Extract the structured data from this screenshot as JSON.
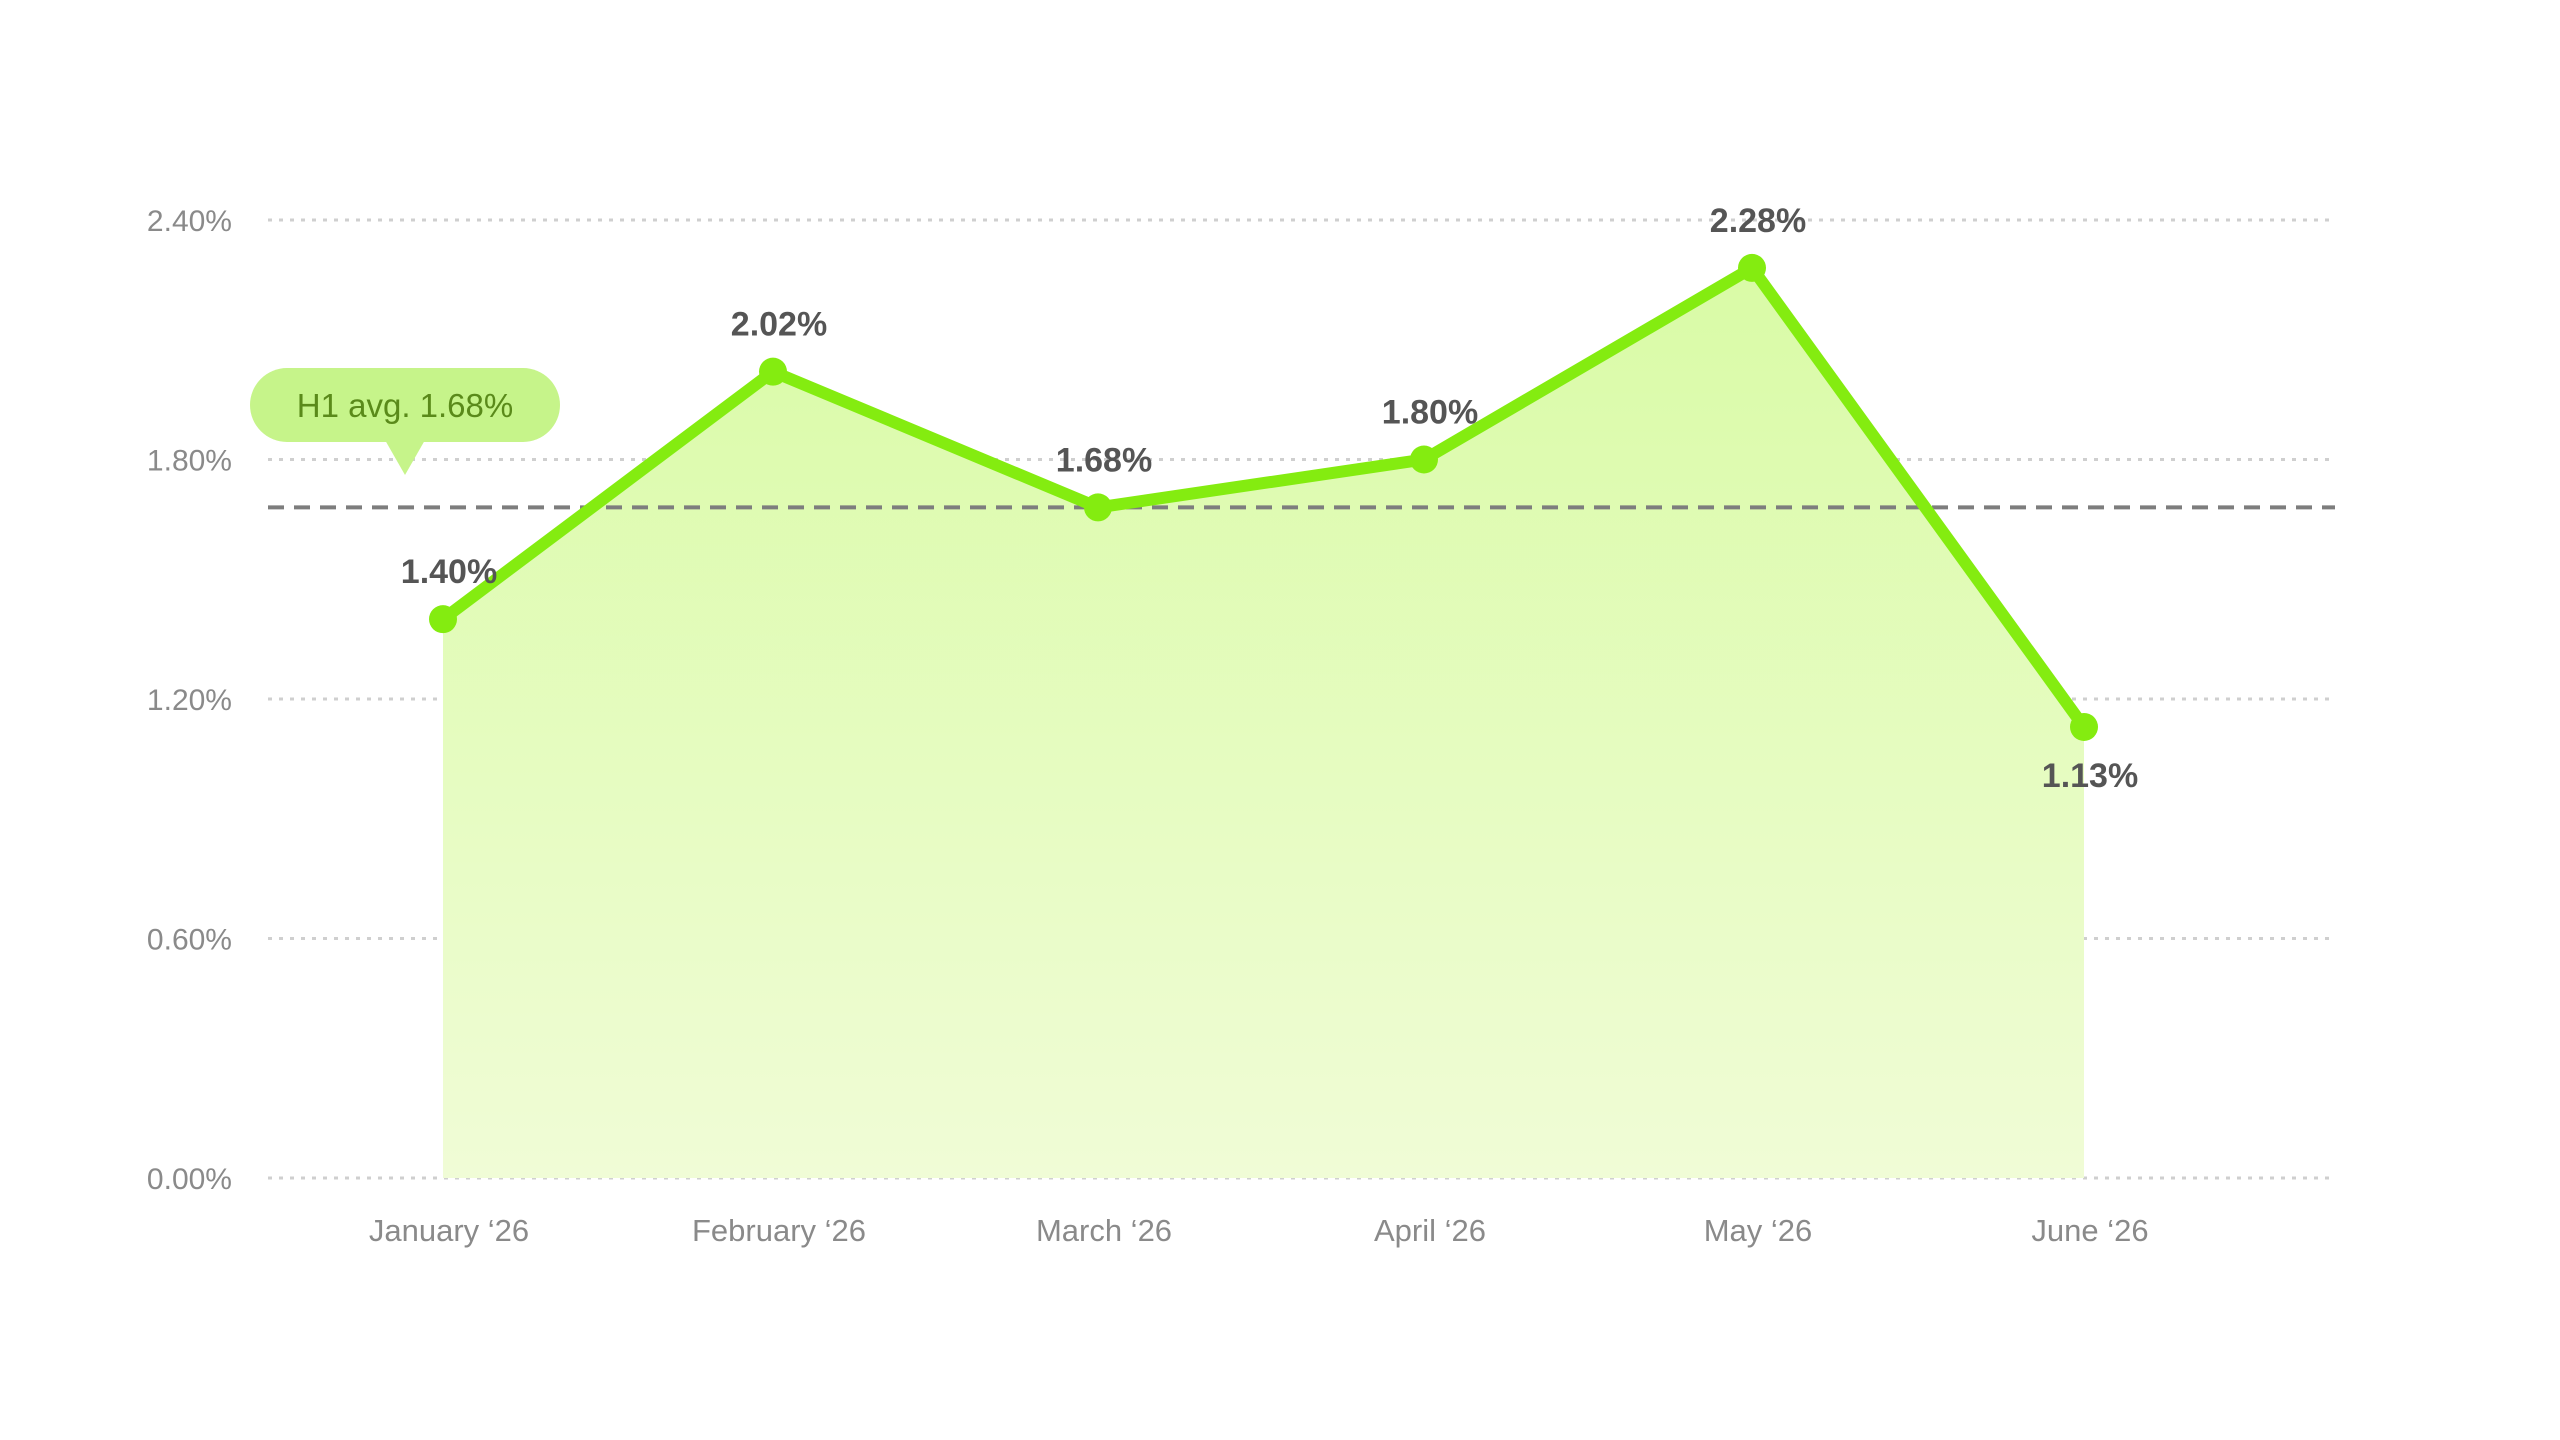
{
  "chart_data": {
    "type": "area",
    "categories": [
      "January ‘26",
      "February ‘26",
      "March ‘26",
      "April ‘26",
      "May ‘26",
      "June ‘26"
    ],
    "values": [
      1.4,
      2.02,
      1.68,
      1.8,
      2.28,
      1.13
    ],
    "data_labels": [
      "1.40%",
      "2.02%",
      "1.68%",
      "1.80%",
      "2.28%",
      "1.13%"
    ],
    "ylim": [
      0,
      2.4
    ],
    "y_ticks": [
      0,
      0.6,
      1.2,
      1.8,
      2.4
    ],
    "y_tick_labels": [
      "0.00%",
      "0.60%",
      "1.20%",
      "1.80%",
      "2.40%"
    ],
    "grid": true,
    "reference_line": {
      "value": 1.68,
      "label": "H1 avg. 1.68%"
    },
    "colors": {
      "line": "#84ec10",
      "area_top": "#d9fba6",
      "area_bottom": "#f0fcd6",
      "badge": "#c6f48a",
      "badge_text": "#5a8a1a",
      "reference_line": "#7d7d7d",
      "grid": "#cfcfcf"
    }
  }
}
